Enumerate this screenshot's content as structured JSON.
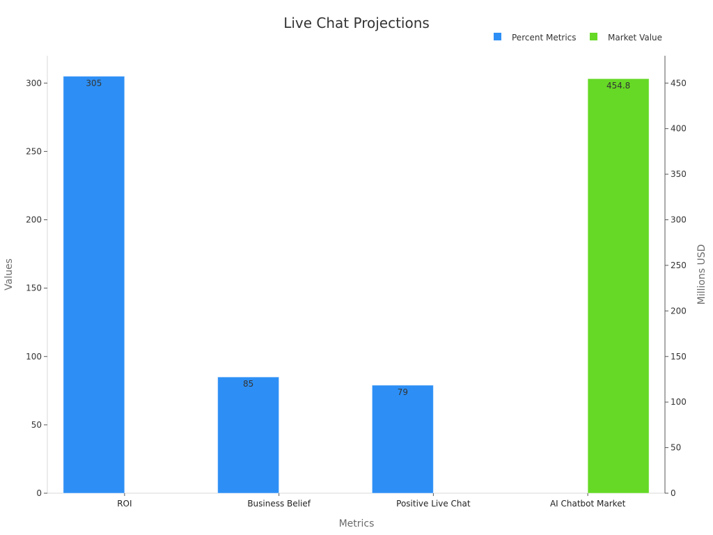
{
  "chart_data": {
    "type": "bar",
    "title": "Live Chat Projections",
    "xlabel": "Metrics",
    "ylabel": "Values",
    "y2label": "Millions USD",
    "categories": [
      "ROI",
      "Business Belief",
      "Positive Live Chat",
      "AI Chatbot Market"
    ],
    "ylim": [
      0,
      320
    ],
    "y2lim": [
      0,
      480
    ],
    "yticks": [
      0,
      50,
      100,
      150,
      200,
      250,
      300
    ],
    "y2ticks": [
      0,
      50,
      100,
      150,
      200,
      250,
      300,
      350,
      400,
      450
    ],
    "legend_position": "top-right",
    "grid": false,
    "series": [
      {
        "name": "Percent Metrics",
        "axis": "left",
        "color": "#2d8ff5",
        "values": [
          305,
          85,
          79,
          null
        ],
        "labels": [
          "305",
          "85",
          "79",
          ""
        ]
      },
      {
        "name": "Market Value",
        "axis": "right",
        "color": "#66d926",
        "values": [
          null,
          null,
          null,
          454.8
        ],
        "labels": [
          "",
          "",
          "",
          "454.8"
        ]
      }
    ]
  }
}
